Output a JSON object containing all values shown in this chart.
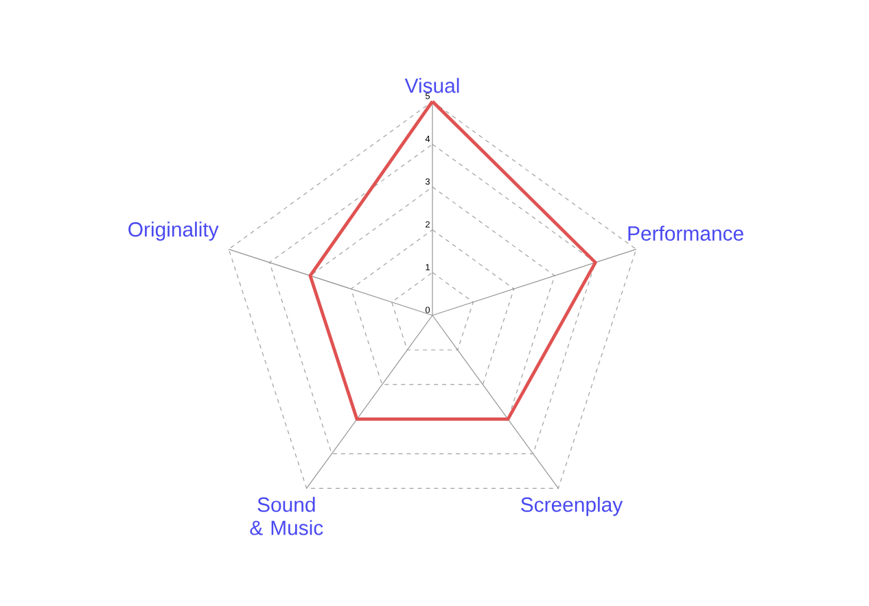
{
  "chart_data": {
    "type": "radar",
    "categories": [
      "Visual",
      "Performance",
      "Screenplay",
      "Sound & Music",
      "Originality"
    ],
    "series": [
      {
        "color": "#e05252",
        "values": [
          5,
          4,
          3,
          3,
          3
        ]
      }
    ],
    "ylim": [
      0,
      5
    ],
    "yticks": [
      0,
      1,
      2,
      3,
      4,
      5
    ],
    "grid": true,
    "line_style": "solid"
  }
}
